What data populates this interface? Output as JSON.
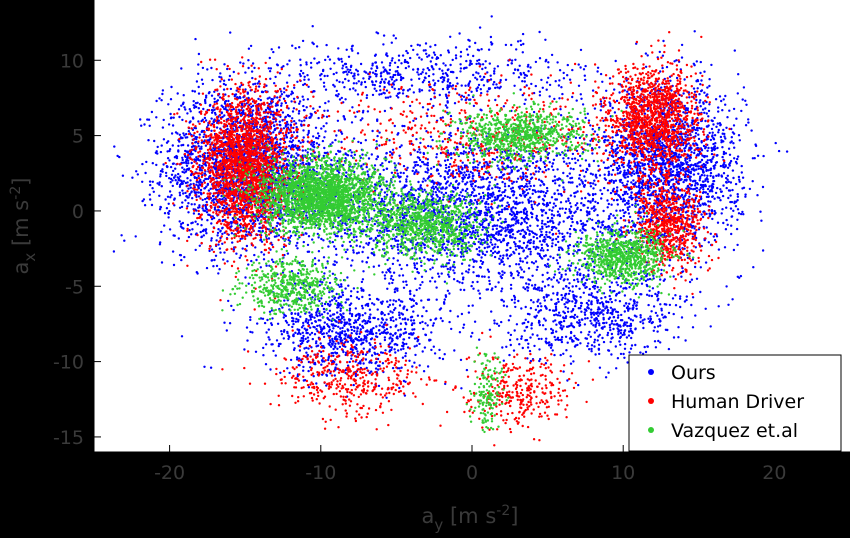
{
  "chart_data": {
    "type": "scatter",
    "title": "",
    "xlabel": {
      "main": "a",
      "sub": "y",
      "unit_pre": " [m s",
      "unit_sup": "-2",
      "unit_post": "]"
    },
    "ylabel": {
      "main": "a",
      "sub": "x",
      "unit_pre": " [m s",
      "unit_sup": "-2",
      "unit_post": "]"
    },
    "xlim": [
      -25,
      25
    ],
    "ylim": [
      -16,
      14
    ],
    "x_ticks": [
      -20,
      -10,
      0,
      10,
      20
    ],
    "x_tick_labels": [
      "-20",
      "-10",
      "0",
      "10",
      "20"
    ],
    "y_ticks": [
      10,
      5,
      0,
      -5,
      -10,
      -15
    ],
    "y_tick_labels": [
      "10",
      "5",
      "0",
      "-5",
      "-10",
      "-15"
    ],
    "grid": false,
    "legend_position": "bottom-right",
    "series": [
      {
        "name": "Ours",
        "color": "#0000ff",
        "clusters": [
          {
            "cx": -15,
            "cy": 3,
            "sx": 4.5,
            "sy": 4.5,
            "n": 2600
          },
          {
            "cx": 13,
            "cy": 3,
            "sx": 4,
            "sy": 4.5,
            "n": 2000
          },
          {
            "cx": 0,
            "cy": 0,
            "sx": 9,
            "sy": 4.5,
            "n": 2600
          },
          {
            "cx": -8,
            "cy": -8,
            "sx": 5,
            "sy": 2.5,
            "n": 900
          },
          {
            "cx": 8,
            "cy": -7,
            "sx": 5,
            "sy": 2.5,
            "n": 700
          },
          {
            "cx": -3,
            "cy": 9,
            "sx": 9,
            "sy": 2,
            "n": 600
          }
        ]
      },
      {
        "name": "Human Driver",
        "color": "#ff0000",
        "clusters": [
          {
            "cx": -15,
            "cy": 3,
            "sx": 2.5,
            "sy": 4,
            "n": 2200
          },
          {
            "cx": 12,
            "cy": 6,
            "sx": 2.5,
            "sy": 3,
            "n": 1300
          },
          {
            "cx": 13,
            "cy": -1,
            "sx": 2,
            "sy": 2.5,
            "n": 700
          },
          {
            "cx": -8,
            "cy": -11,
            "sx": 4,
            "sy": 2,
            "n": 400
          },
          {
            "cx": 3,
            "cy": -12,
            "sx": 3,
            "sy": 2,
            "n": 300
          },
          {
            "cx": 0,
            "cy": 5,
            "sx": 9,
            "sy": 3,
            "n": 500
          }
        ]
      },
      {
        "name": "Vazquez et.al",
        "color": "#33cc33",
        "clusters": [
          {
            "cx": -10,
            "cy": 1,
            "sx": 3.5,
            "sy": 2,
            "n": 2400
          },
          {
            "cx": -3,
            "cy": -1,
            "sx": 3,
            "sy": 1.8,
            "n": 900
          },
          {
            "cx": 3,
            "cy": 5,
            "sx": 3.5,
            "sy": 1.5,
            "n": 800
          },
          {
            "cx": 10,
            "cy": -3,
            "sx": 2.5,
            "sy": 1.5,
            "n": 800
          },
          {
            "cx": -12,
            "cy": -5,
            "sx": 2.5,
            "sy": 1.5,
            "n": 500
          },
          {
            "cx": 1,
            "cy": -12,
            "sx": 1,
            "sy": 2,
            "n": 150
          }
        ]
      }
    ]
  }
}
